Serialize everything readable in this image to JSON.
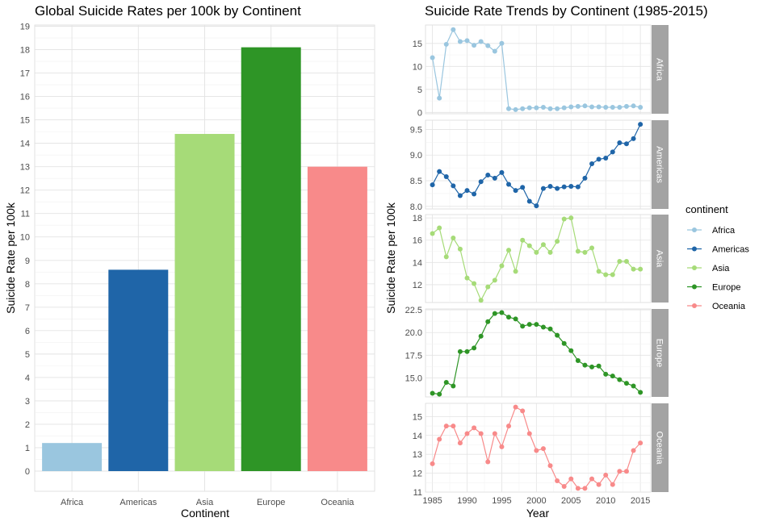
{
  "chart_data": [
    {
      "type": "bar",
      "title": "Global Suicide Rates per 100k by Continent",
      "xlabel": "Continent",
      "ylabel": "Suicide Rate per 100k",
      "categories": [
        "Africa",
        "Americas",
        "Asia",
        "Europe",
        "Oceania"
      ],
      "values": [
        1.2,
        8.6,
        14.4,
        18.1,
        13.0
      ],
      "colors": [
        "#9ac6df",
        "#1f65a8",
        "#a6db78",
        "#2e9526",
        "#f88a8a"
      ],
      "ylim": [
        0,
        19
      ],
      "yticks": [
        0,
        1,
        2,
        3,
        4,
        5,
        6,
        7,
        8,
        9,
        10,
        11,
        12,
        13,
        14,
        15,
        16,
        17,
        18,
        19
      ],
      "grid": true
    },
    {
      "type": "line",
      "title": "Suicide Rate Trends by Continent (1985-2015)",
      "xlabel": "Year",
      "ylabel": "Suicide Rate per 100k",
      "x": [
        1985,
        1986,
        1987,
        1988,
        1989,
        1990,
        1991,
        1992,
        1993,
        1994,
        1995,
        1996,
        1997,
        1998,
        1999,
        2000,
        2001,
        2002,
        2003,
        2004,
        2005,
        2006,
        2007,
        2008,
        2009,
        2010,
        2011,
        2012,
        2013,
        2014,
        2015
      ],
      "xticks": [
        1985,
        1990,
        1995,
        2000,
        2005,
        2010,
        2015
      ],
      "xlim": [
        1984,
        2016.5
      ],
      "legend_title": "continent",
      "legend_position": "right",
      "grid": true,
      "series": [
        {
          "name": "Africa",
          "color": "#9ac6df",
          "ylim": [
            -0.3,
            19.0
          ],
          "yticks": [
            0,
            5,
            10,
            15
          ],
          "values": [
            11.9,
            3.1,
            14.8,
            18.0,
            15.4,
            15.6,
            14.6,
            15.4,
            14.5,
            13.3,
            15.0,
            0.8,
            0.6,
            0.8,
            1.0,
            1.0,
            1.1,
            0.8,
            0.8,
            1.0,
            1.2,
            1.3,
            1.4,
            1.2,
            1.2,
            1.1,
            1.1,
            1.1,
            1.3,
            1.4,
            1.1
          ]
        },
        {
          "name": "Americas",
          "color": "#1f65a8",
          "ylim": [
            7.95,
            9.68
          ],
          "yticks": [
            8.0,
            8.5,
            9.0,
            9.5
          ],
          "ytick_labels": [
            "8.0",
            "8.5",
            "9.0",
            "9.5"
          ],
          "values": [
            8.42,
            8.68,
            8.58,
            8.4,
            8.21,
            8.31,
            8.24,
            8.48,
            8.61,
            8.55,
            8.66,
            8.43,
            8.31,
            8.37,
            8.1,
            8.01,
            8.35,
            8.39,
            8.35,
            8.38,
            8.39,
            8.38,
            8.55,
            8.83,
            8.92,
            8.94,
            9.06,
            9.24,
            9.22,
            9.32,
            9.6
          ]
        },
        {
          "name": "Asia",
          "color": "#a6db78",
          "ylim": [
            10.4,
            18.3
          ],
          "yticks": [
            12,
            14,
            16,
            18
          ],
          "values": [
            16.6,
            17.1,
            14.5,
            16.2,
            15.2,
            12.6,
            12.1,
            10.6,
            11.8,
            12.4,
            13.7,
            15.1,
            13.2,
            16.0,
            15.5,
            14.9,
            15.6,
            14.9,
            15.9,
            17.9,
            18.0,
            15.0,
            14.9,
            15.3,
            13.2,
            12.9,
            12.9,
            14.1,
            14.1,
            13.4,
            13.4
          ]
        },
        {
          "name": "Europe",
          "color": "#2e9526",
          "ylim": [
            12.9,
            22.6
          ],
          "yticks": [
            15.0,
            17.5,
            20.0,
            22.5
          ],
          "ytick_labels": [
            "15.0",
            "17.5",
            "20.0",
            "22.5"
          ],
          "values": [
            13.3,
            13.2,
            14.5,
            14.1,
            17.9,
            17.9,
            18.3,
            19.6,
            21.2,
            22.1,
            22.2,
            21.7,
            21.5,
            20.7,
            20.9,
            20.9,
            20.6,
            20.4,
            19.7,
            18.8,
            18.0,
            16.9,
            16.4,
            16.2,
            16.3,
            15.4,
            15.2,
            14.8,
            14.4,
            14.1,
            13.4
          ]
        },
        {
          "name": "Oceania",
          "color": "#f88a8a",
          "ylim": [
            11.0,
            15.7
          ],
          "yticks": [
            11,
            12,
            13,
            14,
            15
          ],
          "values": [
            12.5,
            13.8,
            14.5,
            14.5,
            13.6,
            14.1,
            14.4,
            14.1,
            12.6,
            14.1,
            13.4,
            14.5,
            15.5,
            15.3,
            14.1,
            13.2,
            13.3,
            12.4,
            11.6,
            11.3,
            11.7,
            11.2,
            11.2,
            11.7,
            11.4,
            11.9,
            11.4,
            12.1,
            12.1,
            13.2,
            13.6
          ]
        }
      ]
    }
  ]
}
